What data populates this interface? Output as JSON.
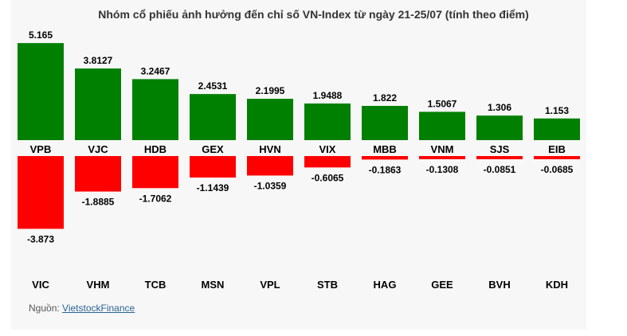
{
  "title": "Nhóm cổ phiếu ảnh hưởng đến chỉ số VN-Index từ ngày 21-25/07 (tính theo điểm)",
  "source": {
    "prefix": "Nguồn: ",
    "link": "VietstockFinance"
  },
  "colors": {
    "positive": "#008000",
    "negative": "#ff0000"
  },
  "chart_data": {
    "type": "bar",
    "title": "Nhóm cổ phiếu ảnh hưởng đến chỉ số VN-Index từ ngày 21-25/07 (tính theo điểm)",
    "series": [
      {
        "categories": [
          "VPB",
          "VJC",
          "HDB",
          "GEX",
          "HVN",
          "VIX",
          "MBB",
          "VNM",
          "SJS",
          "EIB"
        ],
        "values": [
          5.165,
          3.8127,
          3.2467,
          2.4531,
          2.1995,
          1.9488,
          1.822,
          1.5067,
          1.306,
          1.153
        ],
        "labels": [
          "5.165",
          "3.8127",
          "3.2467",
          "2.4531",
          "2.1995",
          "1.9488",
          "1.822",
          "1.5067",
          "1.306",
          "1.153"
        ]
      },
      {
        "categories": [
          "VIC",
          "VHM",
          "TCB",
          "MSN",
          "VPL",
          "STB",
          "HAG",
          "GEE",
          "BVH",
          "KDH"
        ],
        "values": [
          -3.873,
          -1.8885,
          -1.7062,
          -1.1439,
          -1.0359,
          -0.6065,
          -0.1863,
          -0.1308,
          -0.0851,
          -0.0685
        ],
        "labels": [
          "-3.873",
          "-1.8885",
          "-1.7062",
          "-1.1439",
          "-1.0359",
          "-0.6065",
          "-0.1863",
          "-0.1308",
          "-0.0851",
          "-0.0685"
        ]
      }
    ],
    "grid": false,
    "legend": "none"
  }
}
